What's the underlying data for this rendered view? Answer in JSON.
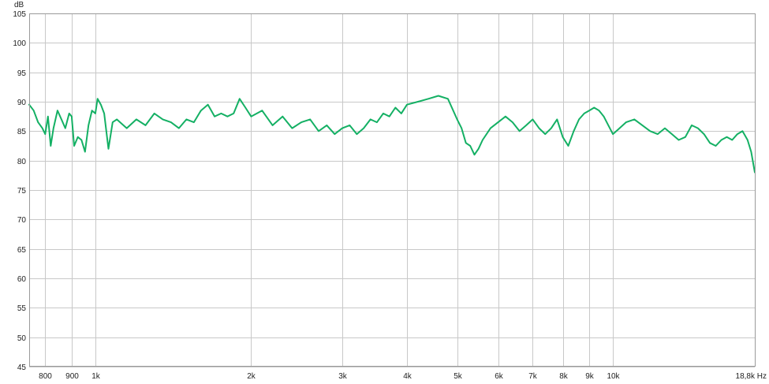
{
  "chart_data": {
    "type": "line",
    "x_scale": "log",
    "xlim": [
      745,
      18800
    ],
    "ylim": [
      45,
      105
    ],
    "y_unit": "dB",
    "x_unit": "Hz",
    "grid": true,
    "y_ticks": [
      {
        "value": 45,
        "label": "45"
      },
      {
        "value": 50,
        "label": "50"
      },
      {
        "value": 55,
        "label": "55"
      },
      {
        "value": 60,
        "label": "60"
      },
      {
        "value": 65,
        "label": "65"
      },
      {
        "value": 70,
        "label": "70"
      },
      {
        "value": 75,
        "label": "75"
      },
      {
        "value": 80,
        "label": "80"
      },
      {
        "value": 85,
        "label": "85"
      },
      {
        "value": 90,
        "label": "90"
      },
      {
        "value": 95,
        "label": "95"
      },
      {
        "value": 100,
        "label": "100"
      },
      {
        "value": 105,
        "label": "105"
      }
    ],
    "x_ticks": [
      {
        "value": 800,
        "label": "800"
      },
      {
        "value": 900,
        "label": "900"
      },
      {
        "value": 1000,
        "label": "1k"
      },
      {
        "value": 2000,
        "label": "2k"
      },
      {
        "value": 3000,
        "label": "3k"
      },
      {
        "value": 4000,
        "label": "4k"
      },
      {
        "value": 5000,
        "label": "5k"
      },
      {
        "value": 6000,
        "label": "6k"
      },
      {
        "value": 7000,
        "label": "7k"
      },
      {
        "value": 8000,
        "label": "8k"
      },
      {
        "value": 9000,
        "label": "9k"
      },
      {
        "value": 10000,
        "label": "10k"
      },
      {
        "value": 18800,
        "label": "18,8k"
      }
    ],
    "series": [
      {
        "color": "#14b064",
        "x": [
          745,
          760,
          775,
          790,
          800,
          810,
          820,
          830,
          845,
          860,
          875,
          890,
          900,
          910,
          925,
          940,
          955,
          970,
          985,
          1000,
          1010,
          1025,
          1040,
          1060,
          1080,
          1100,
          1150,
          1200,
          1250,
          1300,
          1350,
          1400,
          1450,
          1500,
          1550,
          1600,
          1650,
          1700,
          1750,
          1800,
          1850,
          1900,
          1950,
          2000,
          2100,
          2200,
          2300,
          2400,
          2500,
          2600,
          2700,
          2800,
          2900,
          3000,
          3100,
          3200,
          3300,
          3400,
          3500,
          3600,
          3700,
          3800,
          3900,
          4000,
          4200,
          4400,
          4600,
          4800,
          5000,
          5100,
          5200,
          5300,
          5400,
          5500,
          5600,
          5800,
          6000,
          6200,
          6400,
          6600,
          6800,
          7000,
          7200,
          7400,
          7600,
          7800,
          8000,
          8200,
          8400,
          8600,
          8800,
          9000,
          9200,
          9400,
          9600,
          9800,
          10000,
          10300,
          10600,
          11000,
          11400,
          11800,
          12200,
          12600,
          13000,
          13400,
          13800,
          14200,
          14600,
          15000,
          15400,
          15800,
          16200,
          16600,
          17000,
          17400,
          17800,
          18200,
          18500,
          18800
        ],
        "y": [
          89.5,
          88.5,
          86.5,
          85.5,
          84.5,
          87.5,
          82.5,
          85.5,
          88.5,
          87.0,
          85.5,
          88.0,
          87.5,
          82.5,
          84.0,
          83.5,
          81.5,
          86.0,
          88.5,
          88.0,
          90.5,
          89.5,
          88.0,
          82.0,
          86.5,
          87.0,
          85.5,
          87.0,
          86.0,
          88.0,
          87.0,
          86.5,
          85.5,
          87.0,
          86.5,
          88.5,
          89.5,
          87.5,
          88.0,
          87.5,
          88.0,
          90.5,
          89.0,
          87.5,
          88.5,
          86.0,
          87.5,
          85.5,
          86.5,
          87.0,
          85.0,
          86.0,
          84.5,
          85.5,
          86.0,
          84.5,
          85.5,
          87.0,
          86.5,
          88.0,
          87.5,
          89.0,
          88.0,
          89.5,
          90.0,
          90.5,
          91.0,
          90.5,
          87.0,
          85.5,
          83.0,
          82.5,
          81.0,
          82.0,
          83.5,
          85.5,
          86.5,
          87.5,
          86.5,
          85.0,
          86.0,
          87.0,
          85.5,
          84.5,
          85.5,
          87.0,
          84.0,
          82.5,
          85.0,
          87.0,
          88.0,
          88.5,
          89.0,
          88.5,
          87.5,
          86.0,
          84.5,
          85.5,
          86.5,
          87.0,
          86.0,
          85.0,
          84.5,
          85.5,
          84.5,
          83.5,
          84.0,
          86.0,
          85.5,
          84.5,
          83.0,
          82.5,
          83.5,
          84.0,
          83.5,
          84.5,
          85.0,
          83.5,
          81.5,
          78.0
        ]
      }
    ]
  },
  "labels": {
    "y_unit_label": "dB",
    "x_last_label": "18,8k Hz"
  }
}
